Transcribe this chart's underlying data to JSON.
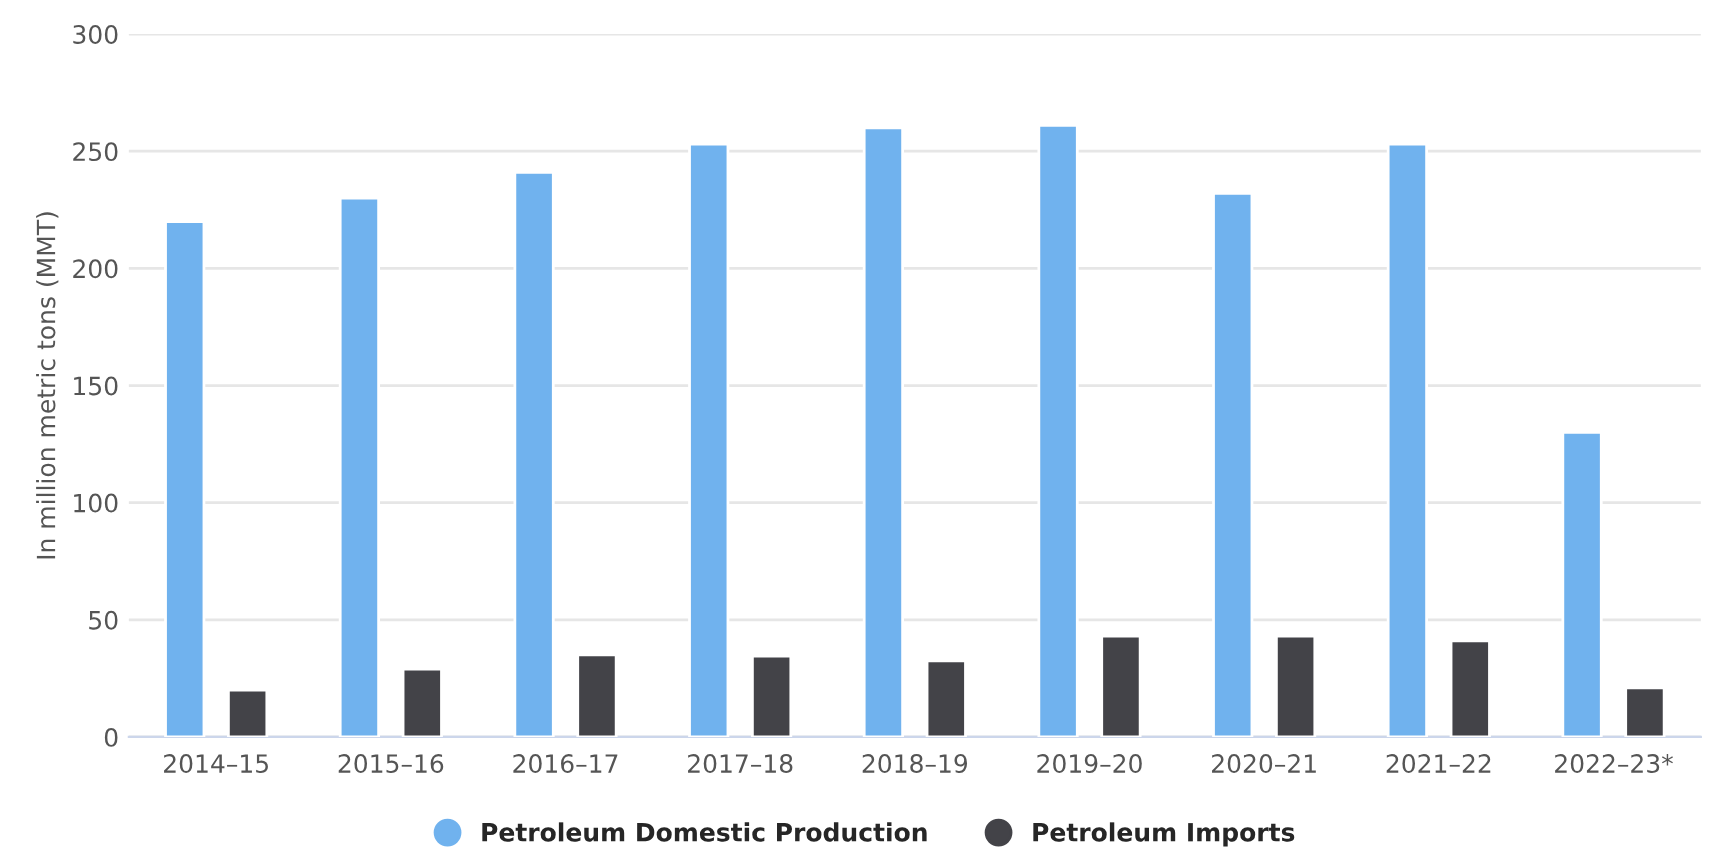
{
  "chart_data": {
    "type": "bar",
    "ylabel": "In million metric tons (MMT)",
    "categories": [
      "2014–15",
      "2015–16",
      "2016–17",
      "2017–18",
      "2018–19",
      "2019–20",
      "2020–21",
      "2021–22",
      "2022–23*"
    ],
    "series": [
      {
        "name": "Petroleum Domestic Production",
        "color": "#70b2ee",
        "values": [
          220,
          230,
          241,
          253,
          260,
          261,
          232,
          253,
          130
        ]
      },
      {
        "name": "Petroleum Imports",
        "color": "#434348",
        "values": [
          20,
          29,
          35,
          34.5,
          32.5,
          43,
          43,
          41,
          21
        ]
      }
    ],
    "ylim": [
      0,
      300
    ],
    "yticks": [
      0,
      50,
      100,
      150,
      200,
      250,
      300
    ],
    "grid": "y",
    "legend": "bottom"
  }
}
